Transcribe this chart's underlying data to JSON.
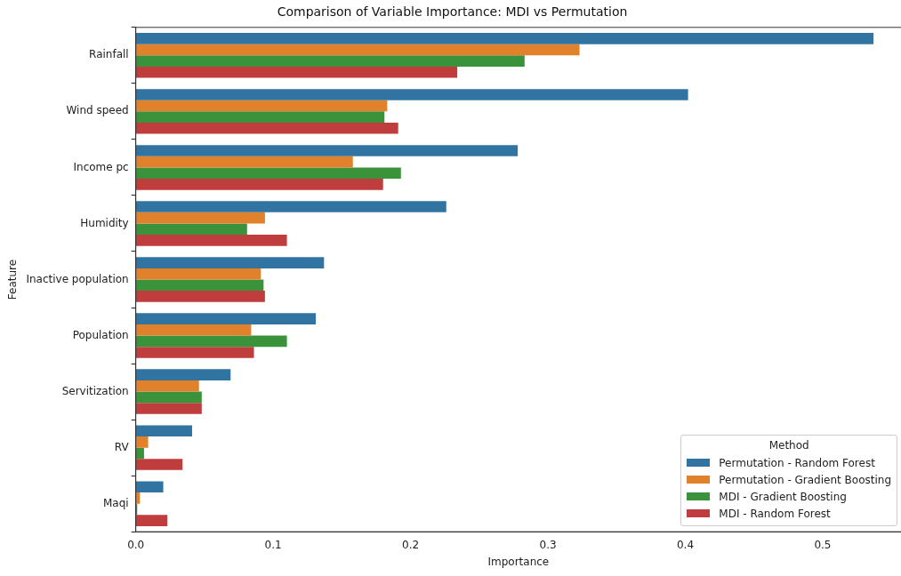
{
  "chart_data": {
    "type": "bar",
    "orientation": "horizontal",
    "title": "Comparison of Variable Importance: MDI vs Permutation",
    "xlabel": "Importance",
    "ylabel": "Feature",
    "legend_title": "Method",
    "legend": "bottom right",
    "grid": false,
    "categories": [
      "Rainfall",
      "Wind speed",
      "Income pc",
      "Humidity",
      "Inactive population",
      "Population",
      "Servitization",
      "RV",
      "Maqi"
    ],
    "xlim": [
      0,
      0.557
    ],
    "xticks": [
      {
        "value": 0,
        "label": "0.0"
      },
      0.1,
      0.2,
      0.3,
      0.4,
      0.5
    ],
    "series": [
      {
        "name": "Permutation - Random Forest",
        "color": "#3274a1",
        "values": [
          0.537,
          0.402,
          0.278,
          0.226,
          0.137,
          0.131,
          0.069,
          0.041,
          0.02
        ]
      },
      {
        "name": "Permutation - Gradient Boosting",
        "color": "#e1812c",
        "values": [
          0.323,
          0.183,
          0.158,
          0.094,
          0.091,
          0.084,
          0.046,
          0.009,
          0.003
        ]
      },
      {
        "name": "MDI - Gradient Boosting",
        "color": "#3a923a",
        "values": [
          0.283,
          0.181,
          0.193,
          0.081,
          0.093,
          0.11,
          0.048,
          0.006,
          0.001
        ]
      },
      {
        "name": "MDI - Random Forest",
        "color": "#c03d3e",
        "values": [
          0.234,
          0.191,
          0.18,
          0.11,
          0.094,
          0.086,
          0.048,
          0.034,
          0.023
        ]
      }
    ]
  }
}
